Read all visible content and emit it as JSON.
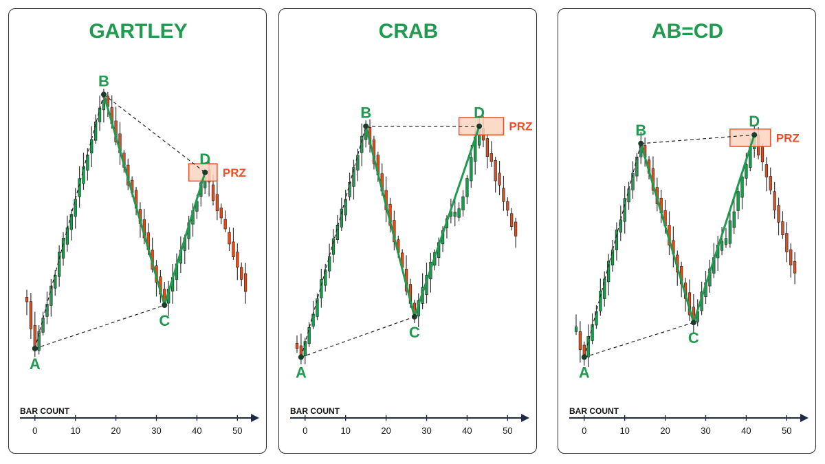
{
  "colors": {
    "bull": "#1f9a4f",
    "bear": "#e04e1d",
    "title": "#1f9a4f",
    "wick": "#333333",
    "prz_fill": "#fbd3c0",
    "prz_stroke": "#ef4d25",
    "prz_text": "#ef4d25",
    "dashed": "#222222",
    "leg": "#1f9a4f",
    "point": "#1d3b2b"
  },
  "chart_data": [
    {
      "type": "candlestick",
      "title": "GARTLEY",
      "xlabel": "BAR COUNT",
      "xticks": [
        0,
        10,
        20,
        30,
        40,
        50
      ],
      "xlim": [
        -2,
        53
      ],
      "ylim": [
        0,
        100
      ],
      "points": [
        {
          "label": "A",
          "x": 0,
          "y": 5
        },
        {
          "label": "B",
          "x": 17,
          "y": 93
        },
        {
          "label": "C",
          "x": 32,
          "y": 20
        },
        {
          "label": "D",
          "x": 42,
          "y": 66
        }
      ],
      "prz": {
        "label": "PRZ",
        "x0": 38,
        "x1": 45,
        "y0": 63,
        "y1": 69
      },
      "swings": [
        [
          -2,
          22
        ],
        [
          0,
          5
        ],
        [
          17,
          93
        ],
        [
          32,
          20
        ],
        [
          42,
          66
        ],
        [
          52,
          26
        ]
      ]
    },
    {
      "type": "candlestick",
      "title": "CRAB",
      "xlabel": "BAR COUNT",
      "xticks": [
        0,
        10,
        20,
        30,
        40,
        50
      ],
      "xlim": [
        -2,
        53
      ],
      "ylim": [
        0,
        100
      ],
      "points": [
        {
          "label": "A",
          "x": -1,
          "y": 2
        },
        {
          "label": "B",
          "x": 15,
          "y": 82
        },
        {
          "label": "C",
          "x": 27,
          "y": 16
        },
        {
          "label": "D",
          "x": 43,
          "y": 82
        }
      ],
      "prz": {
        "label": "PRZ",
        "x0": 38,
        "x1": 49,
        "y0": 79,
        "y1": 85
      },
      "swings": [
        [
          -2,
          6
        ],
        [
          -1,
          2
        ],
        [
          15,
          82
        ],
        [
          27,
          16
        ],
        [
          35,
          50
        ],
        [
          38,
          52
        ],
        [
          43,
          82
        ],
        [
          52,
          44
        ]
      ]
    },
    {
      "type": "candlestick",
      "title": "AB=CD",
      "xlabel": "BAR COUNT",
      "xticks": [
        0,
        10,
        20,
        30,
        40,
        50
      ],
      "xlim": [
        -2,
        53
      ],
      "ylim": [
        0,
        100
      ],
      "points": [
        {
          "label": "A",
          "x": 0,
          "y": 2
        },
        {
          "label": "B",
          "x": 14,
          "y": 76
        },
        {
          "label": "C",
          "x": 27,
          "y": 14
        },
        {
          "label": "D",
          "x": 42,
          "y": 79
        }
      ],
      "prz": {
        "label": "PRZ",
        "x0": 36,
        "x1": 46,
        "y0": 75,
        "y1": 81
      },
      "swings": [
        [
          -2,
          10
        ],
        [
          0,
          2
        ],
        [
          14,
          76
        ],
        [
          27,
          14
        ],
        [
          33,
          40
        ],
        [
          35,
          42
        ],
        [
          42,
          79
        ],
        [
          52,
          30
        ]
      ]
    }
  ]
}
